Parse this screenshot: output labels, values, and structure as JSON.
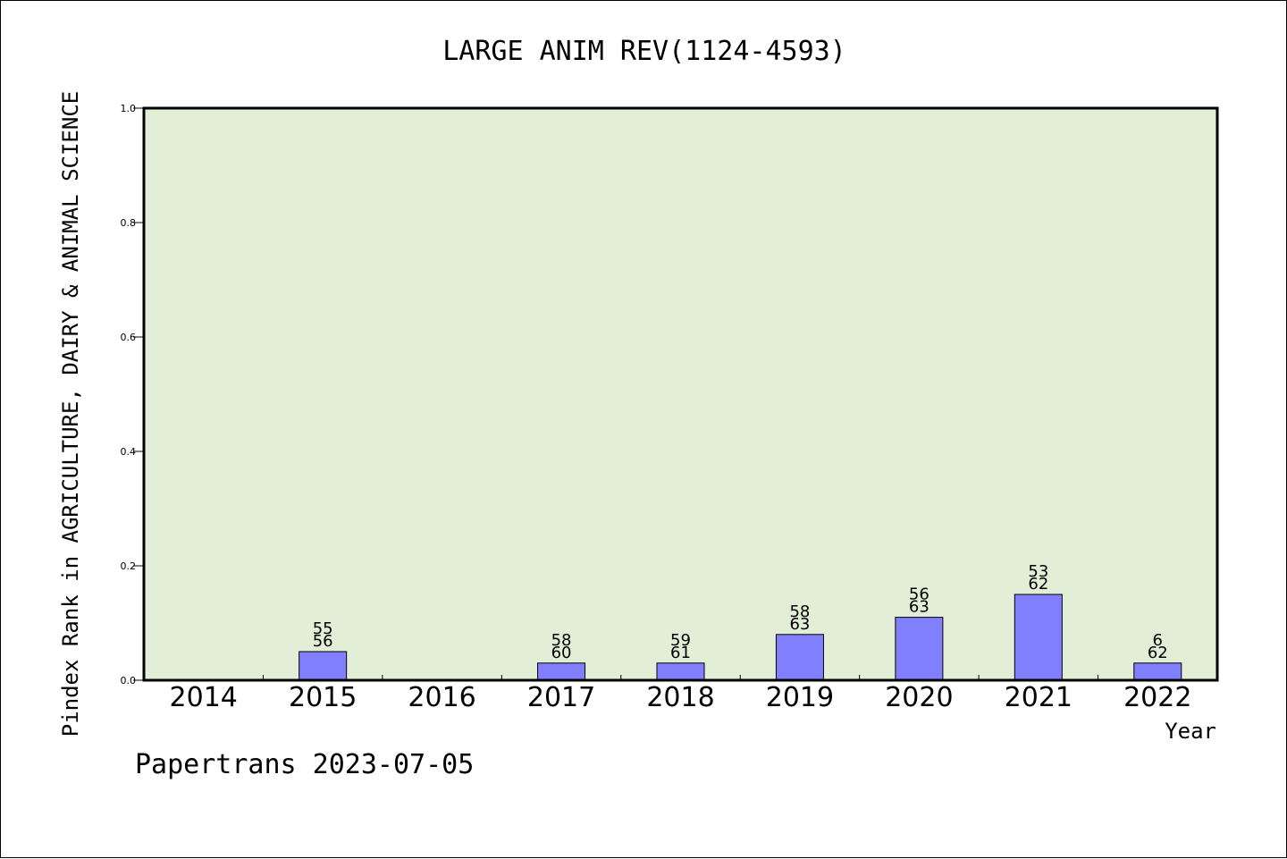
{
  "chart_data": {
    "type": "bar",
    "title": "LARGE ANIM REV(1124-4593)",
    "xlabel": "Year",
    "ylabel": "Pindex Rank in AGRICULTURE, DAIRY & ANIMAL SCIENCE",
    "footer": "Papertrans 2023-07-05",
    "categories": [
      "2014",
      "2015",
      "2016",
      "2017",
      "2018",
      "2019",
      "2020",
      "2021",
      "2022"
    ],
    "values": [
      null,
      0.05,
      null,
      0.03,
      0.03,
      0.08,
      0.11,
      0.15,
      0.03
    ],
    "rank_labels": [
      "",
      "55",
      "",
      "58",
      "59",
      "58",
      "56",
      "53",
      "6"
    ],
    "total_labels": [
      "",
      "56",
      "",
      "60",
      "61",
      "63",
      "63",
      "62",
      "62"
    ],
    "ylim": [
      0,
      1.0
    ],
    "yticks": [
      "0.0",
      "0.2",
      "0.4",
      "0.6",
      "0.8",
      "1.0"
    ],
    "grid": false,
    "colors": {
      "plot_background": "#e2efd6",
      "bar_fill": "#8080ff",
      "bar_stroke": "#000000"
    }
  }
}
